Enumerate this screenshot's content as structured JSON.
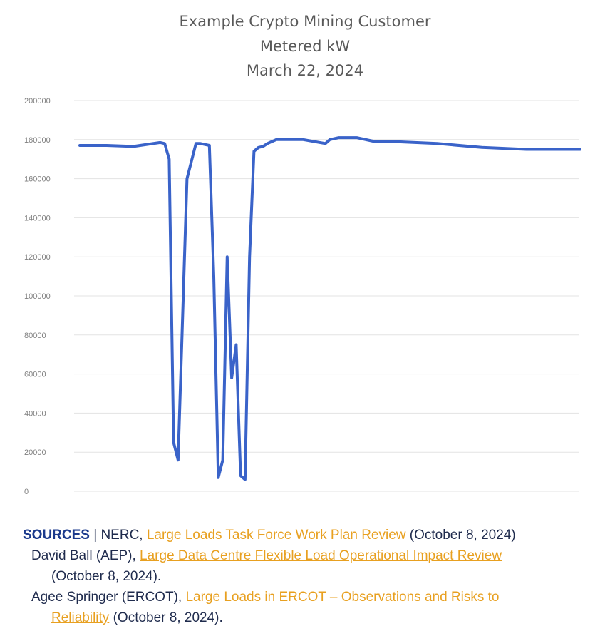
{
  "chart_data": {
    "type": "line",
    "title": [
      "Example Crypto Mining Customer",
      "Metered kW",
      "March 22, 2024"
    ],
    "xlabel": "",
    "ylabel": "",
    "ylim": [
      0,
      200000
    ],
    "yticks": [
      "200000",
      "180000",
      "160000",
      "140000",
      "120000",
      "100000",
      "80000",
      "60000",
      "40000",
      "20000",
      "0"
    ],
    "grid": true,
    "legend": "none",
    "series": [
      {
        "color": "#3a63c9",
        "x": [
          0,
          6,
          12,
          18,
          19,
          20,
          21,
          22,
          24,
          26,
          27,
          29,
          30,
          31,
          32,
          33,
          34,
          35,
          36,
          37,
          38,
          39,
          40,
          41,
          42,
          44,
          50,
          55,
          56,
          58,
          62,
          66,
          70,
          80,
          90,
          100,
          104,
          112
        ],
        "values": [
          177000,
          177000,
          176500,
          178500,
          178000,
          170000,
          25000,
          16000,
          160000,
          178000,
          178000,
          177000,
          110000,
          7000,
          16000,
          120000,
          58000,
          75000,
          8000,
          6000,
          120000,
          174000,
          176000,
          176500,
          178000,
          180000,
          180000,
          178000,
          180000,
          181000,
          181000,
          179000,
          179000,
          178000,
          176000,
          175000,
          175000,
          175000
        ]
      }
    ]
  },
  "sources": {
    "heading": "SOURCES",
    "sep": " | NERC, ",
    "link1": "Large Loads Task Force Work Plan Review",
    "date1": " (October 8, 2024)",
    "line2_author": "David Ball (AEP), ",
    "link2": "Large Data Centre Flexible Load Operational Impact Review",
    "date2": "(October 8, 2024).",
    "line4_author": "Agee Springer (ERCOT), ",
    "link3a": "Large Loads in ERCOT – Observations and Risks to",
    "link3b": "Reliability",
    "date3": " (October 8, 2024)."
  }
}
